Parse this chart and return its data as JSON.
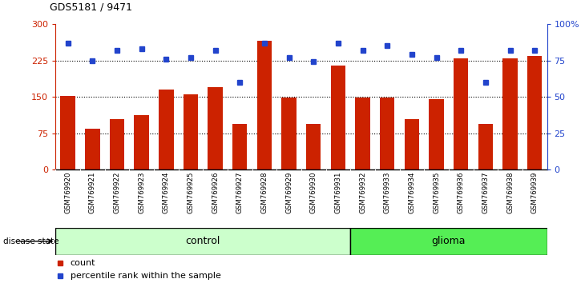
{
  "title": "GDS5181 / 9471",
  "categories": [
    "GSM769920",
    "GSM769921",
    "GSM769922",
    "GSM769923",
    "GSM769924",
    "GSM769925",
    "GSM769926",
    "GSM769927",
    "GSM769928",
    "GSM769929",
    "GSM769930",
    "GSM769931",
    "GSM769932",
    "GSM769933",
    "GSM769934",
    "GSM769935",
    "GSM769936",
    "GSM769937",
    "GSM769938",
    "GSM769939"
  ],
  "bar_values": [
    152,
    85,
    105,
    112,
    165,
    155,
    170,
    95,
    265,
    148,
    95,
    215,
    148,
    148,
    105,
    145,
    230,
    95,
    230,
    235
  ],
  "dot_values": [
    87,
    75,
    82,
    83,
    76,
    77,
    82,
    60,
    87,
    77,
    74,
    87,
    82,
    85,
    79,
    77,
    82,
    60,
    82,
    82
  ],
  "bar_color": "#cc2200",
  "dot_color": "#2244cc",
  "left_ylim": [
    0,
    300
  ],
  "right_ylim": [
    0,
    100
  ],
  "left_yticks": [
    0,
    75,
    150,
    225,
    300
  ],
  "right_yticks": [
    0,
    25,
    50,
    75,
    100
  ],
  "right_yticklabels": [
    "0",
    "25",
    "50",
    "75",
    "100%"
  ],
  "hlines": [
    75,
    150,
    225
  ],
  "control_count": 12,
  "control_label": "control",
  "glioma_label": "glioma",
  "disease_state_label": "disease state",
  "legend_count": "count",
  "legend_percentile": "percentile rank within the sample",
  "control_color": "#ccffcc",
  "glioma_color": "#55ee55",
  "xtick_bg_color": "#c8c8c8"
}
